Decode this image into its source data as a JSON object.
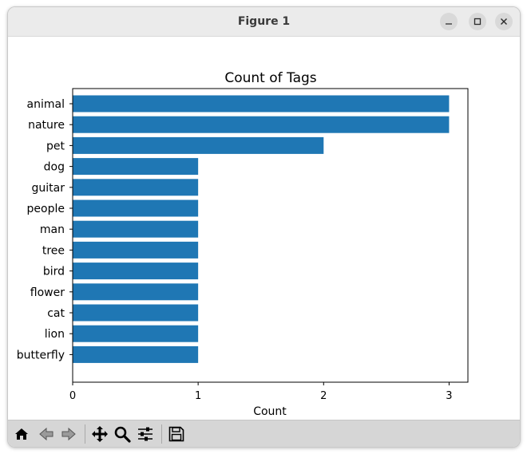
{
  "window": {
    "title": "Figure 1",
    "controls": [
      "minimize-icon",
      "maximize-icon",
      "close-icon"
    ]
  },
  "toolbar": {
    "icons": [
      "home-icon",
      "back-arrow-icon",
      "forward-arrow-icon",
      "pan-move-icon",
      "zoom-magnifier-icon",
      "configure-subplots-icon",
      "save-floppy-icon"
    ]
  },
  "chart_data": {
    "type": "bar",
    "orientation": "horizontal",
    "title": "Count of Tags",
    "xlabel": "Count",
    "ylabel": "",
    "categories": [
      "animal",
      "nature",
      "pet",
      "dog",
      "guitar",
      "people",
      "man",
      "tree",
      "bird",
      "flower",
      "cat",
      "lion",
      "butterfly"
    ],
    "values": [
      3,
      3,
      2,
      1,
      1,
      1,
      1,
      1,
      1,
      1,
      1,
      1,
      1
    ],
    "xlim": [
      0,
      3.15
    ],
    "xticks": [
      0,
      1,
      2,
      3
    ],
    "grid": false,
    "bar_color": "#1f77b4"
  }
}
